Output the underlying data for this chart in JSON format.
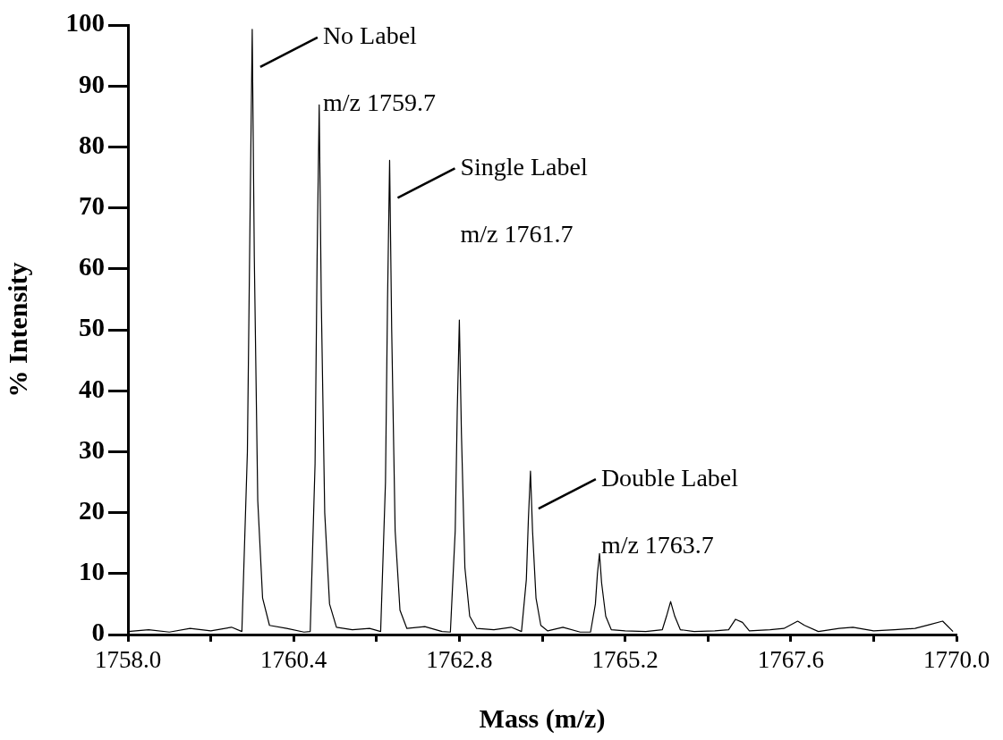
{
  "chart_data": {
    "type": "line",
    "xlabel": "Mass (m/z)",
    "ylabel": "% Intensity",
    "x": [
      1758.0,
      1758.3,
      1758.6,
      1758.9,
      1759.2,
      1759.5,
      1759.65,
      1759.73,
      1759.77,
      1759.8,
      1759.83,
      1759.88,
      1759.95,
      1760.05,
      1760.3,
      1760.55,
      1760.64,
      1760.71,
      1760.74,
      1760.77,
      1760.8,
      1760.85,
      1760.92,
      1761.02,
      1761.25,
      1761.5,
      1761.66,
      1761.73,
      1761.76,
      1761.79,
      1761.82,
      1761.87,
      1761.94,
      1762.04,
      1762.3,
      1762.55,
      1762.67,
      1762.74,
      1762.77,
      1762.8,
      1762.83,
      1762.88,
      1762.95,
      1763.05,
      1763.3,
      1763.55,
      1763.7,
      1763.77,
      1763.8,
      1763.83,
      1763.86,
      1763.91,
      1763.98,
      1764.08,
      1764.3,
      1764.55,
      1764.7,
      1764.77,
      1764.8,
      1764.83,
      1764.86,
      1764.92,
      1765.0,
      1765.2,
      1765.5,
      1765.74,
      1765.8,
      1765.86,
      1765.92,
      1766.0,
      1766.2,
      1766.5,
      1766.7,
      1766.8,
      1766.9,
      1767.0,
      1767.3,
      1767.5,
      1767.7,
      1767.8,
      1768.0,
      1768.3,
      1768.5,
      1768.8,
      1769.1,
      1769.4,
      1769.6,
      1769.8,
      1769.95
    ],
    "series": [
      {
        "color": "#000000",
        "values": [
          0.5,
          0.8,
          0.4,
          1.0,
          0.6,
          1.2,
          0.5,
          30,
          70,
          99.3,
          62,
          22,
          6,
          1.5,
          1.0,
          0.4,
          0.5,
          28,
          62,
          86.9,
          55,
          20,
          5,
          1.2,
          0.8,
          1.0,
          0.5,
          25,
          55,
          77.8,
          50,
          17,
          4,
          1,
          1.3,
          0.5,
          0.4,
          17,
          37,
          51.6,
          33,
          11,
          3,
          1,
          0.8,
          1.2,
          0.5,
          9,
          19,
          26.8,
          17,
          6,
          1.5,
          0.6,
          1.2,
          0.4,
          0.4,
          5,
          10,
          13.3,
          8.5,
          3,
          0.8,
          0.6,
          0.5,
          0.8,
          3,
          5.4,
          3,
          0.8,
          0.5,
          0.6,
          0.8,
          2.5,
          2.0,
          0.6,
          0.8,
          1.0,
          2.2,
          1.5,
          0.5,
          1.0,
          1.2,
          0.6,
          0.8,
          1.0,
          1.6,
          2.2,
          0.5
        ]
      }
    ],
    "xlim": [
      1758,
      1770
    ],
    "xticks": [
      {
        "value": 1758,
        "label": "1758.0"
      },
      {
        "value": 1759.2,
        "label": null
      },
      {
        "value": 1760.4,
        "label": "1760.4"
      },
      {
        "value": 1761.6,
        "label": null
      },
      {
        "value": 1762.8,
        "label": "1762.8"
      },
      {
        "value": 1764,
        "label": null
      },
      {
        "value": 1765.2,
        "label": "1765.2"
      },
      {
        "value": 1766.4,
        "label": null
      },
      {
        "value": 1767.6,
        "label": "1767.6"
      },
      {
        "value": 1768.8,
        "label": null
      },
      {
        "value": 1770,
        "label": "1770.0"
      }
    ],
    "ylim": [
      0,
      100
    ],
    "yticks": [
      0,
      10,
      20,
      30,
      40,
      50,
      60,
      70,
      80,
      90,
      100
    ],
    "grid": false,
    "legend": false,
    "marker": "none",
    "line_style": "solid",
    "annotations": [
      {
        "text": "No Label",
        "x": 1759.8,
        "y": 99.3
      },
      "m/z 1759.7",
      {
        "text": "Single Label",
        "x": 1761.79,
        "y": 77.8
      },
      "m/z 1761.7",
      {
        "text": "Double Label",
        "x": 1763.83,
        "y": 26.8
      },
      "m/z 1763.7"
    ]
  }
}
